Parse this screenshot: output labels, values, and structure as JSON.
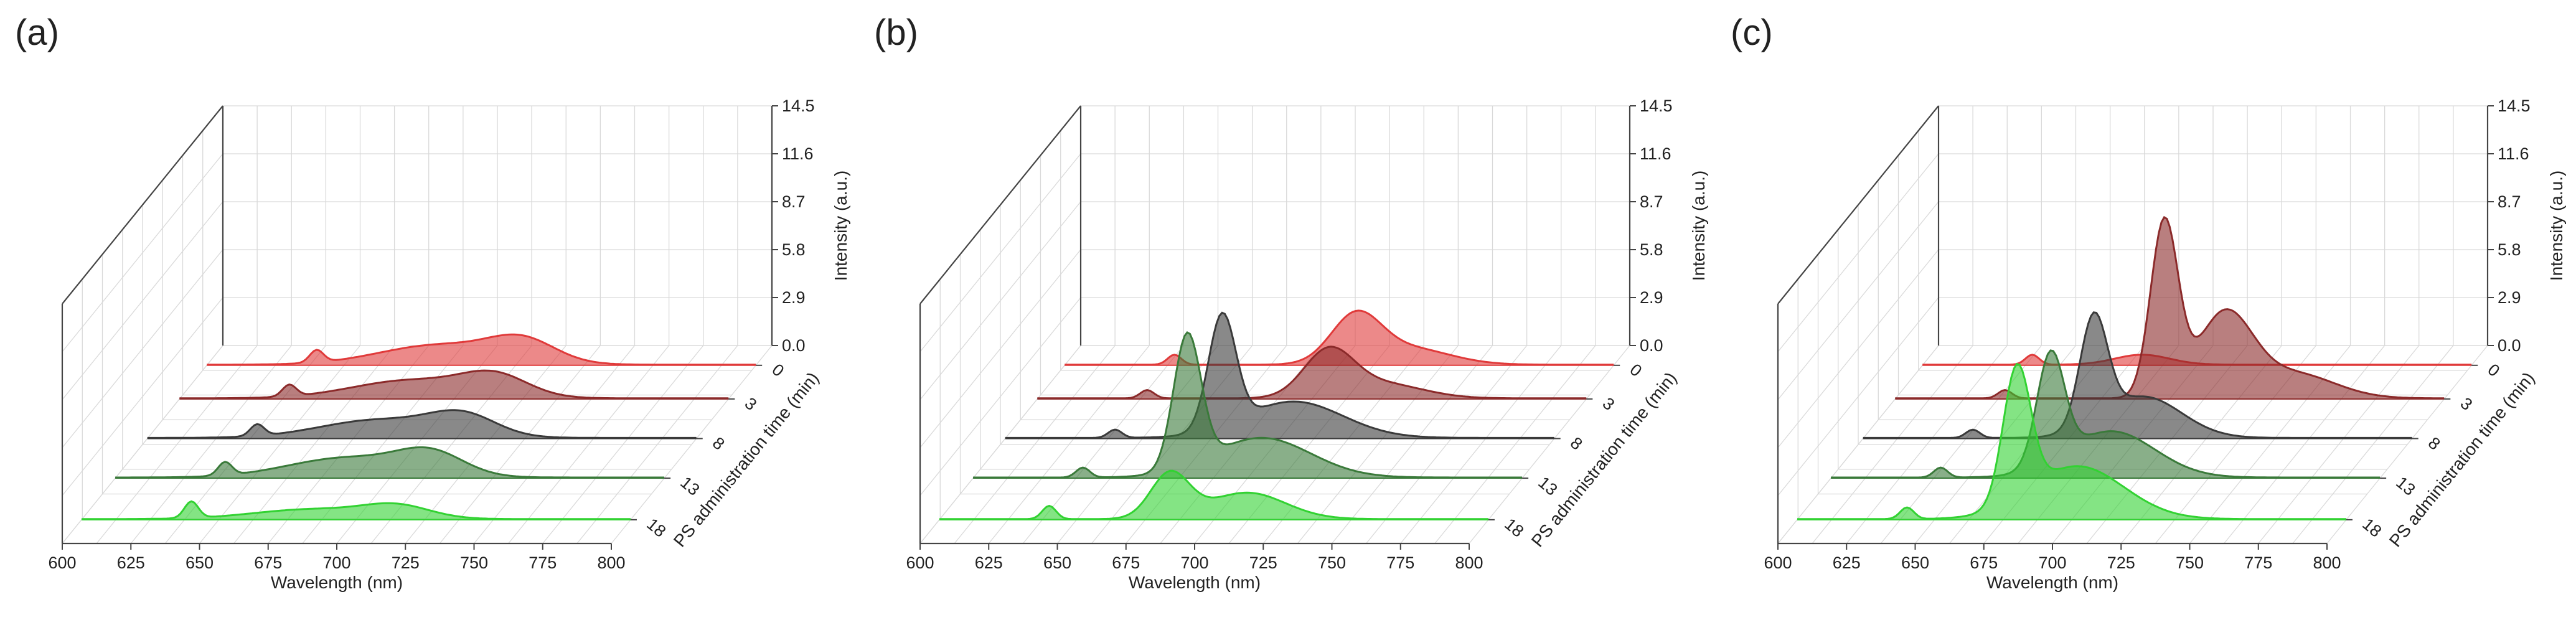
{
  "chart_data": [
    {
      "panel": "(a)",
      "type": "3d-waterfall-area",
      "xlabel": "Wavelength (nm)",
      "ylabel": "PS administration time (min)",
      "zlabel": "Intensity (a.u.)",
      "xticks": [
        "600",
        "625",
        "650",
        "675",
        "700",
        "725",
        "750",
        "775",
        "800"
      ],
      "yticks": [
        "0",
        "3",
        "8",
        "13",
        "18"
      ],
      "zticks": [
        "0.0",
        "2.9",
        "5.8",
        "8.7",
        "11.6",
        "14.5"
      ],
      "xlim": [
        600,
        800
      ],
      "zlim": [
        0,
        14.5
      ],
      "series": [
        {
          "time": "0",
          "color": "#e03a3a",
          "peaks": [
            {
              "x": 640,
              "a": 0.75,
              "w": 2.5
            },
            {
              "x": 685,
              "a": 1.2,
              "w": 22
            },
            {
              "x": 715,
              "a": 1.3,
              "w": 12
            }
          ]
        },
        {
          "time": "3",
          "color": "#8b2a2a",
          "peaks": [
            {
              "x": 640,
              "a": 0.7,
              "w": 2.5
            },
            {
              "x": 685,
              "a": 1.1,
              "w": 22
            },
            {
              "x": 715,
              "a": 1.2,
              "w": 12
            }
          ]
        },
        {
          "time": "8",
          "color": "#3a3a3a",
          "peaks": [
            {
              "x": 640,
              "a": 0.7,
              "w": 2.5
            },
            {
              "x": 685,
              "a": 1.1,
              "w": 22
            },
            {
              "x": 715,
              "a": 1.2,
              "w": 12
            }
          ]
        },
        {
          "time": "13",
          "color": "#3a7a3a",
          "peaks": [
            {
              "x": 640,
              "a": 0.8,
              "w": 2.5
            },
            {
              "x": 685,
              "a": 1.2,
              "w": 22
            },
            {
              "x": 715,
              "a": 1.3,
              "w": 12
            }
          ]
        },
        {
          "time": "18",
          "color": "#32d232",
          "peaks": [
            {
              "x": 640,
              "a": 1.0,
              "w": 2.5
            },
            {
              "x": 685,
              "a": 0.6,
              "w": 22
            },
            {
              "x": 715,
              "a": 0.7,
              "w": 12
            }
          ]
        }
      ]
    },
    {
      "panel": "(b)",
      "type": "3d-waterfall-area",
      "xlabel": "Wavelength (nm)",
      "ylabel": "PS administration time (min)",
      "zlabel": "Intensity (a.u.)",
      "xticks": [
        "600",
        "625",
        "650",
        "675",
        "700",
        "725",
        "750",
        "775",
        "800"
      ],
      "yticks": [
        "0",
        "3",
        "8",
        "13",
        "18"
      ],
      "zticks": [
        "0.0",
        "2.9",
        "5.8",
        "8.7",
        "11.6",
        "14.5"
      ],
      "xlim": [
        600,
        800
      ],
      "zlim": [
        0,
        14.5
      ],
      "series": [
        {
          "time": "0",
          "color": "#e03a3a",
          "peaks": [
            {
              "x": 640,
              "a": 0.6,
              "w": 2.5
            },
            {
              "x": 706,
              "a": 2.8,
              "w": 9
            },
            {
              "x": 725,
              "a": 1.0,
              "w": 15
            }
          ]
        },
        {
          "time": "3",
          "color": "#8b2a2a",
          "peaks": [
            {
              "x": 640,
              "a": 0.5,
              "w": 2.5
            },
            {
              "x": 706,
              "a": 2.7,
              "w": 9
            },
            {
              "x": 725,
              "a": 0.9,
              "w": 15
            }
          ]
        },
        {
          "time": "8",
          "color": "#3a3a3a",
          "peaks": [
            {
              "x": 640,
              "a": 0.5,
              "w": 2.5
            },
            {
              "x": 679,
              "a": 6.8,
              "w": 5
            },
            {
              "x": 705,
              "a": 2.2,
              "w": 18
            }
          ]
        },
        {
          "time": "13",
          "color": "#3a7a3a",
          "peaks": [
            {
              "x": 640,
              "a": 0.6,
              "w": 2.5
            },
            {
              "x": 678,
              "a": 8.0,
              "w": 5
            },
            {
              "x": 705,
              "a": 2.4,
              "w": 18
            }
          ]
        },
        {
          "time": "18",
          "color": "#32d232",
          "peaks": [
            {
              "x": 640,
              "a": 0.8,
              "w": 2.5
            },
            {
              "x": 684,
              "a": 2.7,
              "w": 7
            },
            {
              "x": 712,
              "a": 1.6,
              "w": 14
            }
          ]
        }
      ]
    },
    {
      "panel": "(c)",
      "type": "3d-waterfall-area",
      "xlabel": "Wavelength (nm)",
      "ylabel": "PS administration time (min)",
      "zlabel": "Intensity (a.u.)",
      "xticks": [
        "600",
        "625",
        "650",
        "675",
        "700",
        "725",
        "750",
        "775",
        "800"
      ],
      "yticks": [
        "0",
        "3",
        "8",
        "13",
        "18"
      ],
      "zticks": [
        "0.0",
        "2.9",
        "5.8",
        "8.7",
        "11.6",
        "14.5"
      ],
      "xlim": [
        600,
        800
      ],
      "zlim": [
        0,
        14.5
      ],
      "series": [
        {
          "time": "0",
          "color": "#e03a3a",
          "peaks": [
            {
              "x": 640,
              "a": 0.6,
              "w": 2.5
            },
            {
              "x": 680,
              "a": 0.6,
              "w": 10
            }
          ]
        },
        {
          "time": "3",
          "color": "#8b2a2a",
          "peaks": [
            {
              "x": 640,
              "a": 0.5,
              "w": 2.5
            },
            {
              "x": 698,
              "a": 10.5,
              "w": 5
            },
            {
              "x": 720,
              "a": 5.0,
              "w": 10
            },
            {
              "x": 745,
              "a": 1.5,
              "w": 15
            }
          ]
        },
        {
          "time": "8",
          "color": "#3a3a3a",
          "peaks": [
            {
              "x": 640,
              "a": 0.5,
              "w": 2.5
            },
            {
              "x": 684,
              "a": 6.5,
              "w": 5
            },
            {
              "x": 702,
              "a": 2.5,
              "w": 14
            }
          ]
        },
        {
          "time": "13",
          "color": "#3a7a3a",
          "peaks": [
            {
              "x": 640,
              "a": 0.6,
              "w": 2.5
            },
            {
              "x": 680,
              "a": 6.6,
              "w": 5
            },
            {
              "x": 702,
              "a": 2.8,
              "w": 16
            }
          ]
        },
        {
          "time": "18",
          "color": "#32d232",
          "peaks": [
            {
              "x": 640,
              "a": 0.7,
              "w": 2.5
            },
            {
              "x": 680,
              "a": 8.0,
              "w": 5
            },
            {
              "x": 702,
              "a": 3.2,
              "w": 17
            }
          ]
        }
      ]
    }
  ]
}
